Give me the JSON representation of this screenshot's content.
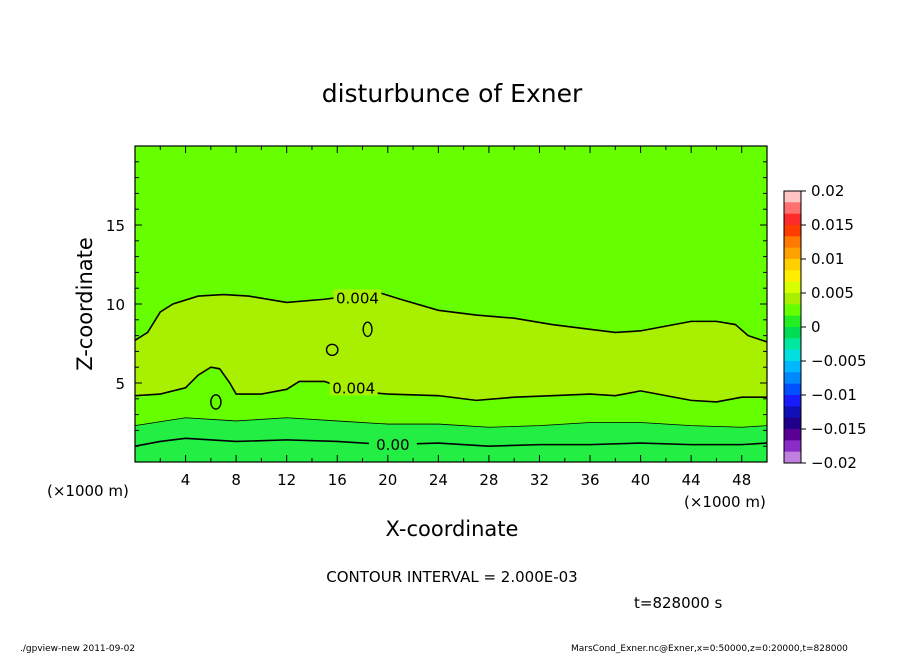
{
  "chart_data": {
    "type": "contour",
    "title": "disturbunce of Exner",
    "xlabel": "X-coordinate",
    "ylabel": "Z-coordinate",
    "x_unit": "(×1000 m)",
    "y_unit": "(×1000 m)",
    "xlim": [
      0,
      50
    ],
    "ylim": [
      0,
      20
    ],
    "x_ticks": [
      4,
      8,
      12,
      16,
      20,
      24,
      28,
      32,
      36,
      40,
      44,
      48
    ],
    "y_ticks": [
      5,
      10,
      15
    ],
    "contour_interval": "CONTOUR INTERVAL = 2.000E-03",
    "time": "t=828000 s",
    "contour_labels": [
      "0.004",
      "0.004",
      "0.00"
    ],
    "contours": [
      {
        "level": 0.004,
        "points": [
          [
            0,
            7.7
          ],
          [
            1,
            8.2
          ],
          [
            2,
            9.5
          ],
          [
            3,
            10.0
          ],
          [
            5,
            10.5
          ],
          [
            7,
            10.6
          ],
          [
            9,
            10.5
          ],
          [
            12,
            10.1
          ],
          [
            15,
            10.3
          ],
          [
            17,
            10.5
          ],
          [
            19,
            10.8
          ],
          [
            21,
            10.3
          ],
          [
            24,
            9.6
          ],
          [
            27,
            9.3
          ],
          [
            30,
            9.1
          ],
          [
            33,
            8.7
          ],
          [
            36,
            8.4
          ],
          [
            38,
            8.2
          ],
          [
            40,
            8.3
          ],
          [
            42,
            8.6
          ],
          [
            44,
            8.9
          ],
          [
            46,
            8.9
          ],
          [
            47.5,
            8.7
          ],
          [
            48.5,
            8.0
          ],
          [
            50,
            7.6
          ]
        ]
      },
      {
        "level": 0.004,
        "points": [
          [
            0,
            4.2
          ],
          [
            2,
            4.3
          ],
          [
            4,
            4.7
          ],
          [
            5,
            5.5
          ],
          [
            6,
            6.0
          ],
          [
            6.7,
            5.9
          ],
          [
            7.5,
            5.0
          ],
          [
            8,
            4.3
          ],
          [
            10,
            4.3
          ],
          [
            12,
            4.6
          ],
          [
            13,
            5.1
          ],
          [
            15,
            5.1
          ],
          [
            17,
            4.5
          ],
          [
            20,
            4.3
          ],
          [
            24,
            4.2
          ],
          [
            27,
            3.9
          ],
          [
            30,
            4.1
          ],
          [
            33,
            4.2
          ],
          [
            36,
            4.3
          ],
          [
            38,
            4.2
          ],
          [
            40,
            4.5
          ],
          [
            42,
            4.2
          ],
          [
            44,
            3.9
          ],
          [
            46,
            3.8
          ],
          [
            48,
            4.1
          ],
          [
            50,
            4.1
          ]
        ]
      },
      {
        "level": 0.002,
        "points": [
          [
            0,
            2.3
          ],
          [
            4,
            2.8
          ],
          [
            8,
            2.6
          ],
          [
            12,
            2.8
          ],
          [
            16,
            2.6
          ],
          [
            20,
            2.4
          ],
          [
            24,
            2.4
          ],
          [
            28,
            2.2
          ],
          [
            32,
            2.3
          ],
          [
            36,
            2.5
          ],
          [
            40,
            2.5
          ],
          [
            44,
            2.3
          ],
          [
            48,
            2.2
          ],
          [
            50,
            2.3
          ]
        ]
      },
      {
        "level": 0.0,
        "points": [
          [
            0,
            1.0
          ],
          [
            2,
            1.3
          ],
          [
            4,
            1.5
          ],
          [
            8,
            1.3
          ],
          [
            12,
            1.4
          ],
          [
            16,
            1.3
          ],
          [
            20,
            1.1
          ],
          [
            24,
            1.2
          ],
          [
            28,
            1.0
          ],
          [
            32,
            1.1
          ],
          [
            36,
            1.1
          ],
          [
            40,
            1.2
          ],
          [
            44,
            1.1
          ],
          [
            48,
            1.1
          ],
          [
            50,
            1.2
          ]
        ]
      }
    ],
    "closed_contours": [
      {
        "cx": 6.4,
        "cy": 3.8,
        "rx": 0.4,
        "ry": 0.45
      },
      {
        "cx": 15.6,
        "cy": 7.1,
        "rx": 0.45,
        "ry": 0.35
      },
      {
        "cx": 18.4,
        "cy": 8.4,
        "rx": 0.35,
        "ry": 0.45
      }
    ],
    "colorbar": {
      "ticks": [
        "0.02",
        "0.015",
        "0.01",
        "0.005",
        "0",
        "−0.005",
        "−0.01",
        "−0.015",
        "−0.02"
      ],
      "colors_top_to_bottom": [
        "#ffc4c4",
        "#ff7070",
        "#ff2a2a",
        "#ff3c00",
        "#ff7a00",
        "#ffa200",
        "#ffd000",
        "#ffee00",
        "#d8ff00",
        "#a8f000",
        "#66ff00",
        "#22ee22",
        "#00dd55",
        "#00e8a0",
        "#00e0e0",
        "#00b8ff",
        "#0088ff",
        "#0050ff",
        "#1a1aff",
        "#1010b8",
        "#20008a",
        "#5a0094",
        "#8a2cc8",
        "#c080e0"
      ]
    },
    "fill_colors": {
      "lower": "#22ee44",
      "mid": "#66ff00",
      "upper": "#a8f000"
    }
  },
  "footer": {
    "left": "./gpview-new   2011-09-02",
    "right": "MarsCond_Exner.nc@Exner,x=0:50000,z=0:20000,t=828000"
  }
}
